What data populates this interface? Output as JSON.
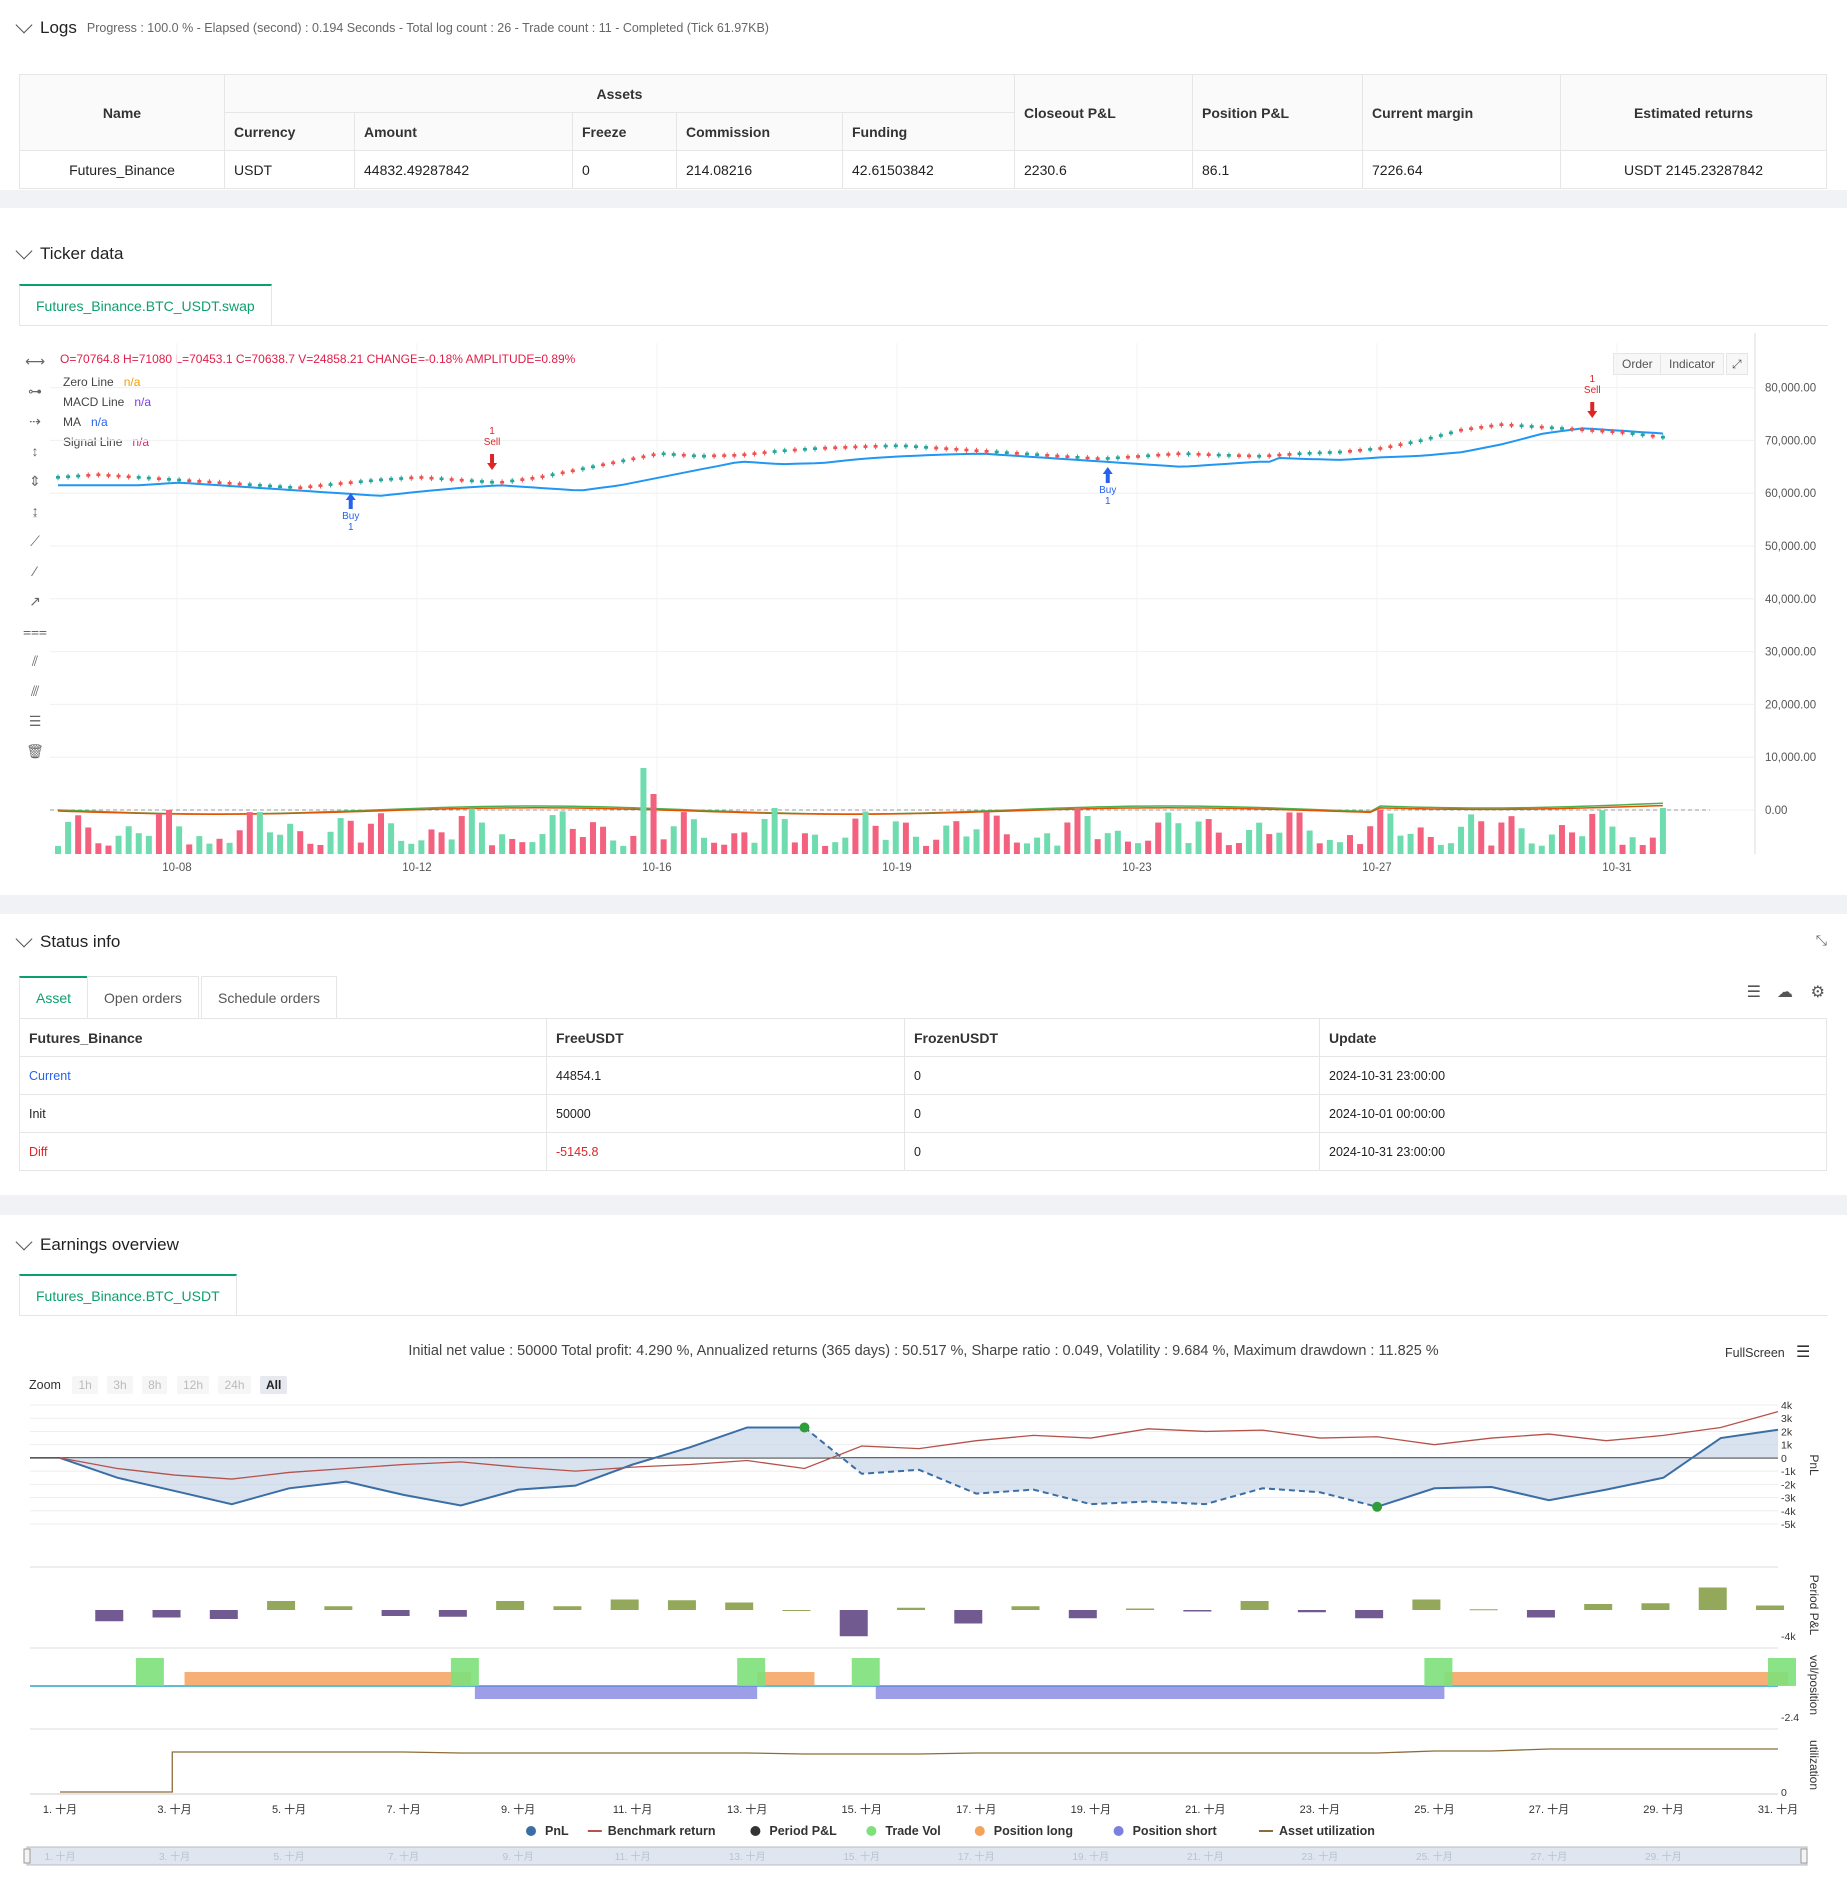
{
  "logs": {
    "title": "Logs",
    "summary": "Progress : 100.0 % - Elapsed (second) : 0.194  Seconds - Total log count : 26 - Trade count : 11 - Completed (Tick 61.97KB)",
    "headers": {
      "name": "Name",
      "assets": "Assets",
      "currency": "Currency",
      "amount": "Amount",
      "freeze": "Freeze",
      "commission": "Commission",
      "funding": "Funding",
      "closeout": "Closeout P&L",
      "position": "Position P&L",
      "margin": "Current margin",
      "returns": "Estimated returns"
    },
    "row": {
      "name": "Futures_Binance",
      "currency": "USDT",
      "amount": "44832.49287842",
      "freeze": "0",
      "commission": "214.08216",
      "funding": "42.61503842",
      "closeout": "2230.6",
      "position": "86.1",
      "margin": "7226.64",
      "returns": "USDT 2145.23287842"
    }
  },
  "ticker": {
    "title": "Ticker data",
    "tab": "Futures_Binance.BTC_USDT.swap",
    "ohlc": "O=70764.8 H=71080 L=70453.1 C=70638.7 V=24858.21 CHANGE=-0.18% AMPLITUDE=0.89%",
    "legend": [
      {
        "label": "Zero Line",
        "value": "n/a",
        "color": "#f59e0b"
      },
      {
        "label": "MACD Line",
        "value": "n/a",
        "color": "#7c3aed"
      },
      {
        "label": "MA",
        "value": "n/a",
        "color": "#2563eb"
      },
      {
        "label": "Signal Line",
        "value": "n/a",
        "color": "#db2777"
      }
    ],
    "buttons": {
      "order": "Order",
      "indicator": "Indicator"
    },
    "y_ticks": [
      "80,000.00",
      "70,000.00",
      "60,000.00",
      "50,000.00",
      "40,000.00",
      "30,000.00",
      "20,000.00",
      "10,000.00",
      "0.00"
    ],
    "x_ticks": [
      "10-08",
      "10-12",
      "10-16",
      "10-19",
      "10-23",
      "10-27",
      "10-31"
    ],
    "signals": [
      {
        "type": "Buy",
        "qty": "1"
      },
      {
        "type": "Sell",
        "qty": "1"
      },
      {
        "type": "Buy",
        "qty": "1"
      },
      {
        "type": "Sell",
        "qty": "1"
      }
    ]
  },
  "status": {
    "title": "Status info",
    "tabs": [
      "Asset",
      "Open orders",
      "Schedule orders"
    ],
    "headers": [
      "Futures_Binance",
      "FreeUSDT",
      "FrozenUSDT",
      "Update"
    ],
    "rows": [
      {
        "label": "Current",
        "free": "44854.1",
        "frozen": "0",
        "update": "2024-10-31 23:00:00"
      },
      {
        "label": "Init",
        "free": "50000",
        "frozen": "0",
        "update": "2024-10-01 00:00:00"
      },
      {
        "label": "Diff",
        "free": "-5145.8",
        "frozen": "0",
        "update": "2024-10-31 23:00:00"
      }
    ]
  },
  "earnings": {
    "title": "Earnings overview",
    "tab": "Futures_Binance.BTC_USDT",
    "summary": "Initial net value : 50000 Total profit: 4.290 %, Annualized returns (365 days) : 50.517 %, Sharpe ratio : 0.049, Volatility : 9.684 %, Maximum drawdown : 11.825 %",
    "fullscreen": "FullScreen",
    "zoom_label": "Zoom",
    "zoom": [
      "1h",
      "3h",
      "8h",
      "12h",
      "24h",
      "All"
    ],
    "pnl_ticks": [
      "4k",
      "3k",
      "2k",
      "1k",
      "0",
      "-1k",
      "-2k",
      "-3k",
      "-4k",
      "-5k"
    ],
    "axis_titles": [
      "PnL",
      "Period P&L",
      "vol/position",
      "utilization"
    ],
    "period_tick": "-4k",
    "vol_tick": "-2.4",
    "util_tick": "0",
    "x_ticks": [
      "1. 十月",
      "3. 十月",
      "5. 十月",
      "7. 十月",
      "9. 十月",
      "11. 十月",
      "13. 十月",
      "15. 十月",
      "17. 十月",
      "19. 十月",
      "21. 十月",
      "23. 十月",
      "25. 十月",
      "27. 十月",
      "29. 十月",
      "31. 十月"
    ],
    "legend": [
      {
        "label": "PnL",
        "color": "#3b6ea5"
      },
      {
        "label": "Benchmark return",
        "color": "#b5524b"
      },
      {
        "label": "Period P&L",
        "color": "#333333"
      },
      {
        "label": "Trade Vol",
        "color": "#7ee07a"
      },
      {
        "label": "Position long",
        "color": "#f5a25d"
      },
      {
        "label": "Position short",
        "color": "#7b7fe0"
      },
      {
        "label": "Asset utilization",
        "color": "#8c6d3a"
      }
    ],
    "chart_data": {
      "type": "line",
      "x": [
        "1. 十月",
        "2. 十月",
        "3. 十月",
        "4. 十月",
        "5. 十月",
        "6. 十月",
        "7. 十月",
        "8. 十月",
        "9. 十月",
        "10. 十月",
        "11. 十月",
        "12. 十月",
        "13. 十月",
        "14. 十月",
        "15. 十月",
        "16. 十月",
        "17. 十月",
        "18. 十月",
        "19. 十月",
        "20. 十月",
        "21. 十月",
        "22. 十月",
        "23. 十月",
        "24. 十月",
        "25. 十月",
        "26. 十月",
        "27. 十月",
        "28. 十月",
        "29. 十月",
        "30. 十月",
        "31. 十月"
      ],
      "series": [
        {
          "name": "PnL",
          "values": [
            0,
            -1500,
            -2500,
            -3500,
            -2300,
            -1800,
            -2800,
            -3600,
            -2400,
            -2100,
            -500,
            800,
            2300,
            2300,
            -1200,
            -900,
            -2700,
            -2400,
            -3500,
            -3300,
            -3500,
            -2300,
            -2600,
            -3700,
            -2300,
            -2200,
            -3200,
            -2400,
            -1500,
            1500,
            2130
          ]
        },
        {
          "name": "Benchmark return",
          "values": [
            0,
            -800,
            -1300,
            -1600,
            -1100,
            -800,
            -500,
            -300,
            -700,
            -1000,
            -700,
            -500,
            -200,
            -800,
            900,
            700,
            1300,
            1700,
            1500,
            2200,
            2000,
            2100,
            1500,
            1600,
            1000,
            1500,
            1800,
            1300,
            1700,
            2300,
            3500
          ]
        }
      ],
      "period_pnl": [
        0,
        -1500,
        -1000,
        -1200,
        1200,
        500,
        -800,
        -900,
        1200,
        500,
        1400,
        1300,
        1000,
        0,
        -3500,
        300,
        -1800,
        500,
        -1100,
        200,
        -200,
        1200,
        -300,
        -1100,
        1400,
        100,
        -1000,
        800,
        900,
        3000,
        600
      ],
      "ylim": [
        -5000,
        4000
      ]
    }
  }
}
